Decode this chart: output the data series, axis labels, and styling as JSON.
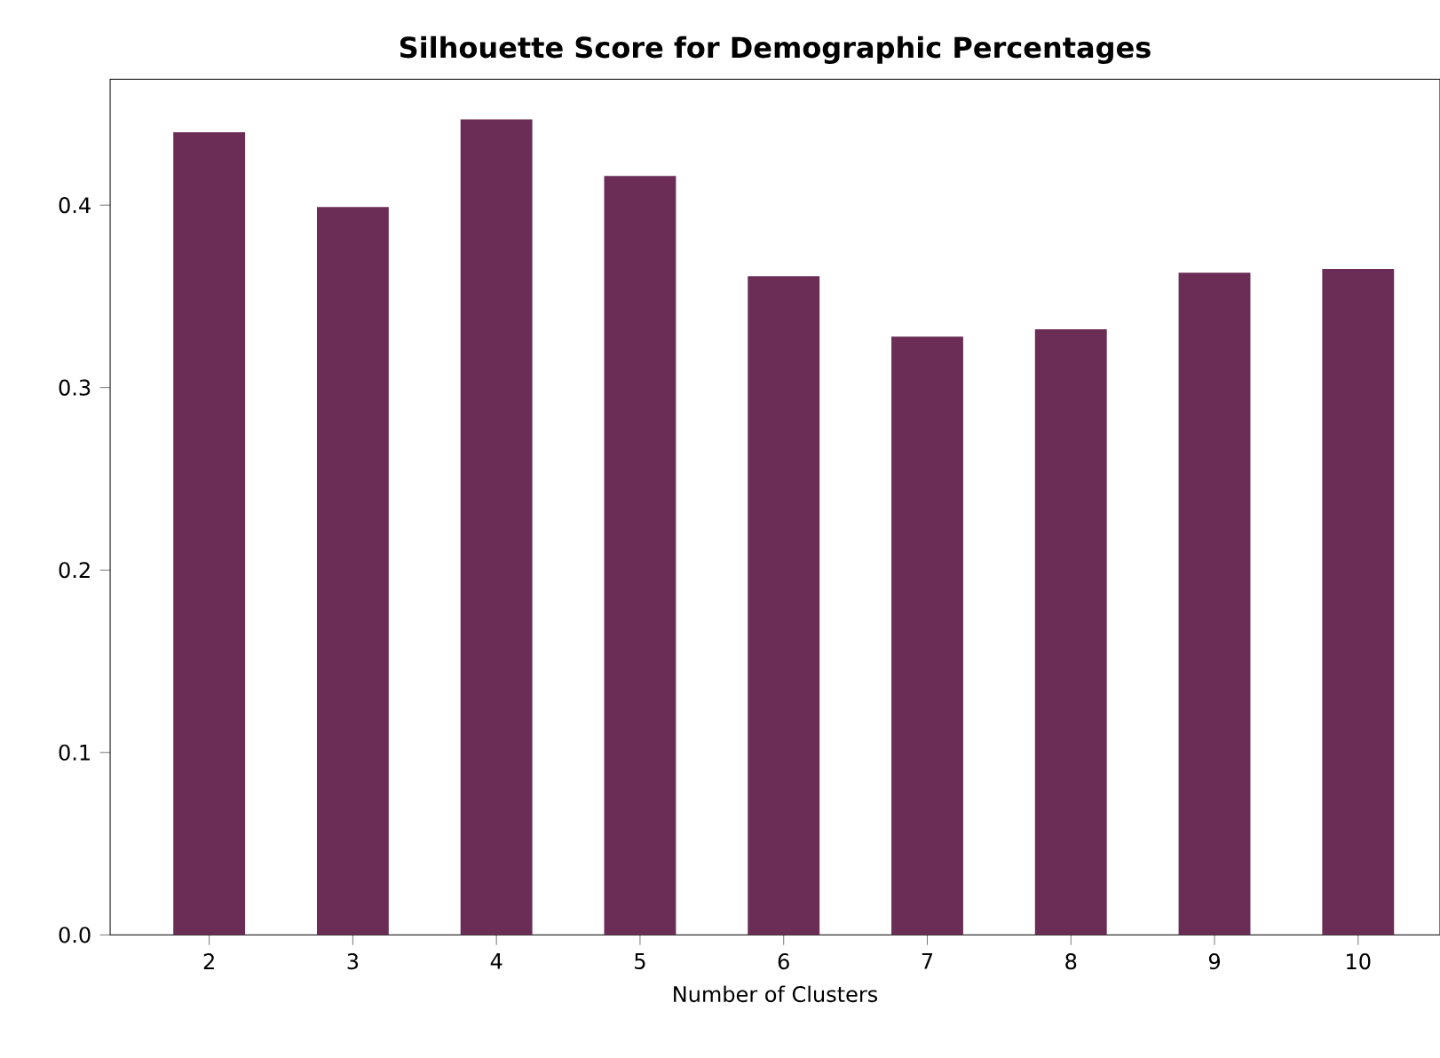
{
  "chart_data": {
    "type": "bar",
    "title": "Silhouette Score for Demographic Percentages",
    "xlabel": "Number of Clusters",
    "categories": [
      "2",
      "3",
      "4",
      "5",
      "6",
      "7",
      "8",
      "9",
      "10"
    ],
    "values": [
      0.44,
      0.399,
      0.447,
      0.416,
      0.361,
      0.328,
      0.332,
      0.363,
      0.365
    ],
    "color": "#6b2c55",
    "ylim": [
      0,
      0.469
    ],
    "yticks": [
      {
        "value": 0,
        "label": "0.0"
      },
      0.1,
      0.2,
      0.3,
      0.4
    ]
  }
}
